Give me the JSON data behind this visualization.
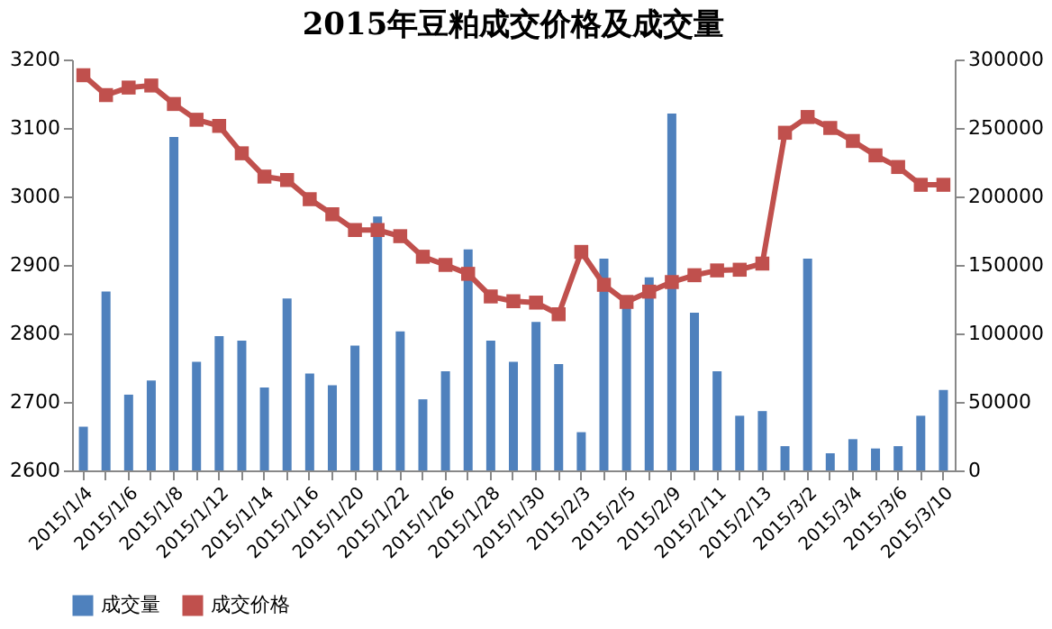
{
  "chart_data": {
    "type": "bar",
    "title": "2015年豆粕成交价格及成交量",
    "categories": [
      "2015/1/4",
      null,
      "2015/1/6",
      null,
      "2015/1/8",
      null,
      "2015/1/12",
      null,
      "2015/1/14",
      null,
      "2015/1/16",
      null,
      "2015/1/20",
      null,
      "2015/1/22",
      null,
      "2015/1/26",
      null,
      "2015/1/28",
      null,
      "2015/1/30",
      null,
      "2015/2/3",
      null,
      "2015/2/5",
      null,
      "2015/2/9",
      null,
      "2015/2/11",
      null,
      "2015/2/13",
      null,
      "2015/3/2",
      null,
      "2015/3/4",
      null,
      "2015/3/6",
      null,
      "2015/3/10"
    ],
    "series": [
      {
        "name": "成交量",
        "axis": "y2",
        "color": "#4f81bd",
        "values": [
          31900,
          130600,
          55300,
          65600,
          243500,
          79300,
          98100,
          94700,
          60500,
          125500,
          70700,
          62200,
          91200,
          185300,
          101500,
          51900,
          72400,
          161400,
          94700,
          79300,
          108400,
          77600,
          27900,
          154600,
          118600,
          140900,
          260600,
          115200,
          72400,
          39900,
          43300,
          17700,
          154600,
          12500,
          22800,
          16000,
          17700,
          39900,
          58700
        ]
      },
      {
        "name": "成交价格",
        "type": "line",
        "axis": "y",
        "color": "#c0504d",
        "marker": "square",
        "values": [
          3177,
          3148,
          3159,
          3162,
          3135,
          3112,
          3103,
          3063,
          3029,
          3024,
          2996,
          2974,
          2951,
          2951,
          2942,
          2912,
          2900,
          2887,
          2854,
          2847,
          2845,
          2828,
          2919,
          2871,
          2846,
          2861,
          2875,
          2885,
          2892,
          2893,
          2902,
          3093,
          3116,
          3100,
          3081,
          3060,
          3043,
          3017,
          3017
        ]
      }
    ],
    "ylim": [
      2600,
      3200
    ],
    "yticks": [
      2600,
      2700,
      2800,
      2900,
      3000,
      3100,
      3200
    ],
    "y2lim": [
      0,
      300000
    ],
    "y2ticks": [
      0,
      50000,
      100000,
      150000,
      200000,
      250000,
      300000
    ],
    "grid": false,
    "legend": "bottom"
  }
}
